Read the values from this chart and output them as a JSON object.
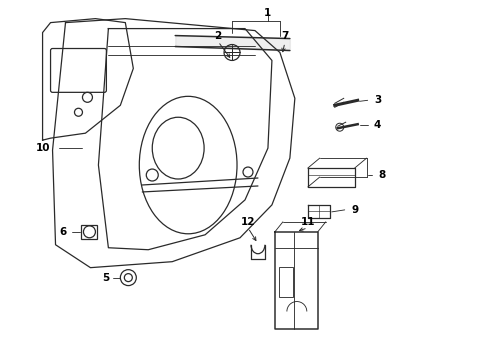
{
  "bg_color": "#ffffff",
  "line_color": "#2a2a2a",
  "label_color": "#000000",
  "font_size": 7.5,
  "lw": 0.9
}
